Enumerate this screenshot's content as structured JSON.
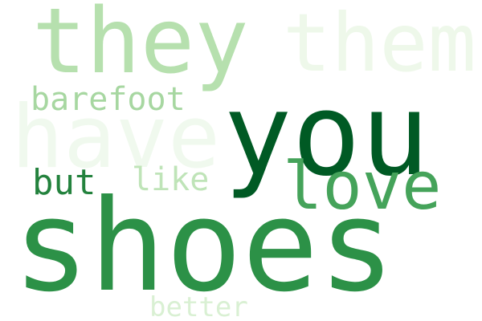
{
  "words": [
    {
      "key": "they",
      "text": "they",
      "color": "#b6e0ae"
    },
    {
      "key": "them",
      "text": "them",
      "color": "#eef8ea"
    },
    {
      "key": "have",
      "text": "have",
      "color": "#f0f9ee"
    },
    {
      "key": "barefoot",
      "text": "barefoot",
      "color": "#a7d7a1"
    },
    {
      "key": "you",
      "text": "you",
      "color": "#005a24"
    },
    {
      "key": "love",
      "text": "love",
      "color": "#45a35a"
    },
    {
      "key": "but",
      "text": "but",
      "color": "#23823d"
    },
    {
      "key": "like",
      "text": "like",
      "color": "#bfe4b8"
    },
    {
      "key": "shoes",
      "text": "shoes",
      "color": "#2c9147"
    },
    {
      "key": "better",
      "text": "better",
      "color": "#d9f0d3"
    }
  ]
}
